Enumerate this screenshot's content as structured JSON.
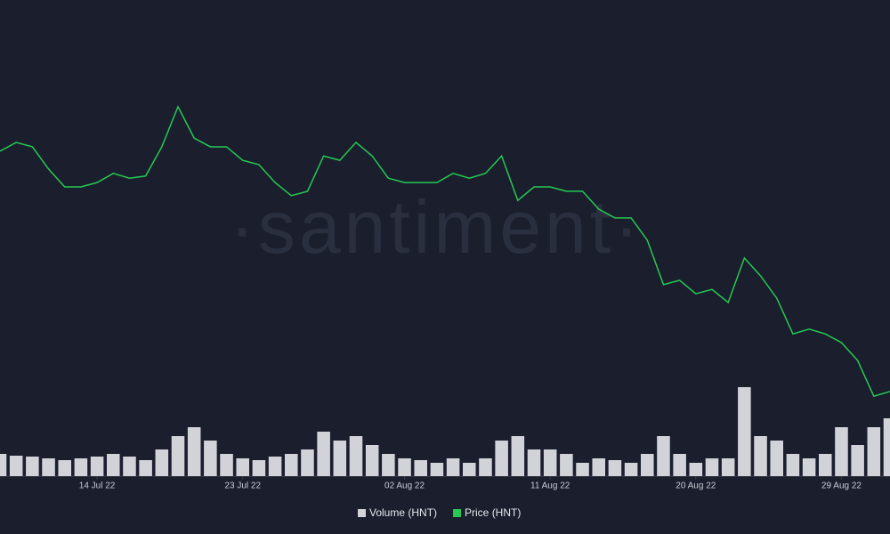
{
  "chart_data": {
    "type": "line-volume",
    "watermark": "·santiment·",
    "x": [
      "2022-07-08",
      "2022-07-09",
      "2022-07-10",
      "2022-07-11",
      "2022-07-12",
      "2022-07-13",
      "2022-07-14",
      "2022-07-15",
      "2022-07-16",
      "2022-07-17",
      "2022-07-18",
      "2022-07-19",
      "2022-07-20",
      "2022-07-21",
      "2022-07-22",
      "2022-07-23",
      "2022-07-24",
      "2022-07-25",
      "2022-07-26",
      "2022-07-27",
      "2022-07-28",
      "2022-07-29",
      "2022-07-30",
      "2022-07-31",
      "2022-08-01",
      "2022-08-02",
      "2022-08-03",
      "2022-08-04",
      "2022-08-05",
      "2022-08-06",
      "2022-08-07",
      "2022-08-08",
      "2022-08-09",
      "2022-08-10",
      "2022-08-11",
      "2022-08-12",
      "2022-08-13",
      "2022-08-14",
      "2022-08-15",
      "2022-08-16",
      "2022-08-17",
      "2022-08-18",
      "2022-08-19",
      "2022-08-20",
      "2022-08-21",
      "2022-08-22",
      "2022-08-23",
      "2022-08-24",
      "2022-08-25",
      "2022-08-26",
      "2022-08-27",
      "2022-08-28",
      "2022-08-29",
      "2022-08-30",
      "2022-08-31",
      "2022-09-01"
    ],
    "xlim": [
      "2022-07-08",
      "2022-09-01"
    ],
    "xticks": [
      {
        "value": "2022-07-14",
        "label": "14 Jul 22"
      },
      {
        "value": "2022-07-23",
        "label": "23 Jul 22"
      },
      {
        "value": "2022-08-02",
        "label": "02 Aug 22"
      },
      {
        "value": "2022-08-11",
        "label": "11 Aug 22"
      },
      {
        "value": "2022-08-20",
        "label": "20 Aug 22"
      },
      {
        "value": "2022-08-29",
        "label": "29 Aug 22"
      }
    ],
    "ylim": [
      0,
      10
    ],
    "y2lim": [
      0,
      60
    ],
    "series": [
      {
        "name": "Volume (HNT)",
        "color": "#d2d3d9",
        "kind": "bar",
        "axis": "y2",
        "values": [
          5,
          4.6,
          4.4,
          4,
          3.6,
          4,
          4.4,
          5,
          4.4,
          3.6,
          6,
          9,
          11,
          8,
          5,
          4,
          3.6,
          4.4,
          5,
          6,
          10,
          8,
          9,
          7,
          5,
          4,
          3.6,
          3,
          4,
          3,
          4,
          8,
          9,
          6,
          6,
          5,
          3,
          4,
          3.6,
          3,
          5,
          9,
          5,
          3,
          4,
          4,
          20,
          9,
          8,
          5,
          4,
          5,
          11,
          7,
          11,
          13
        ]
      },
      {
        "name": "Price (HNT)",
        "color": "#26c953",
        "kind": "line",
        "values": [
          7.35,
          7.55,
          7.45,
          6.94,
          6.53,
          6.53,
          6.63,
          6.84,
          6.73,
          6.78,
          7.45,
          8.37,
          7.65,
          7.45,
          7.45,
          7.14,
          7.04,
          6.63,
          6.33,
          6.43,
          7.24,
          7.14,
          7.55,
          7.24,
          6.73,
          6.63,
          6.63,
          6.63,
          6.84,
          6.73,
          6.84,
          7.24,
          6.22,
          6.53,
          6.53,
          6.43,
          6.43,
          6.02,
          5.82,
          5.82,
          5.31,
          4.29,
          4.39,
          4.08,
          4.18,
          3.88,
          4.9,
          4.49,
          3.98,
          3.16,
          3.27,
          3.16,
          2.96,
          2.55,
          1.73,
          1.84
        ]
      }
    ]
  }
}
